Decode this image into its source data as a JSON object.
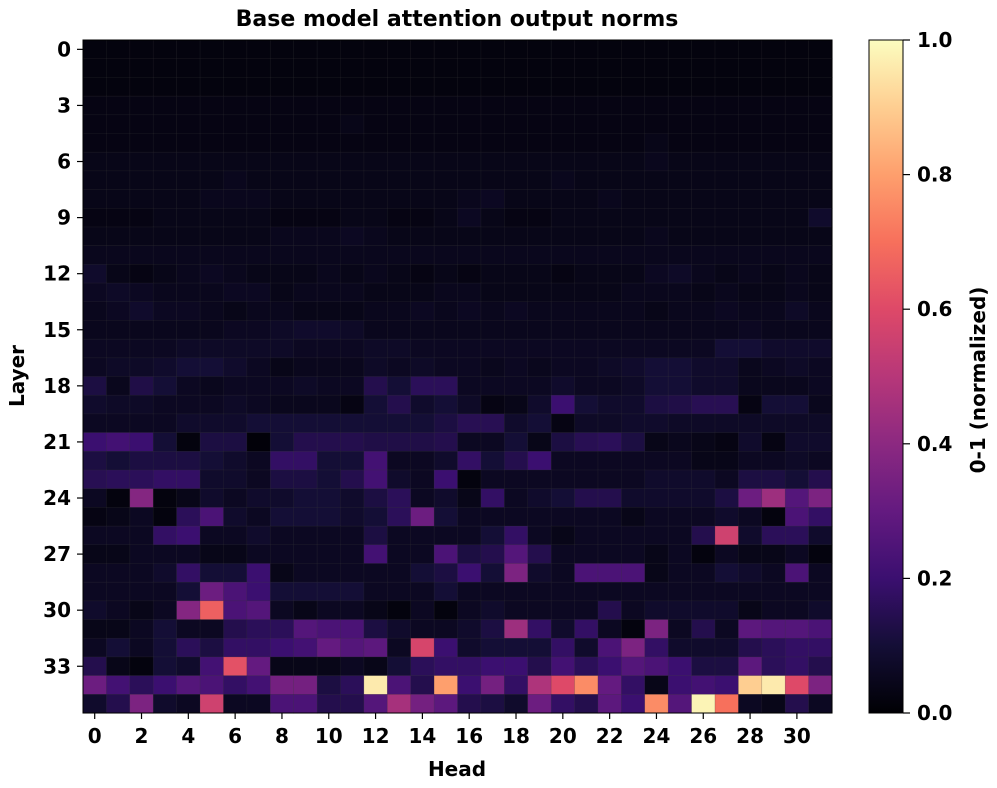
{
  "chart_data": {
    "type": "heatmap",
    "title": "Base model attention output norms",
    "xlabel": "Head",
    "ylabel": "Layer",
    "colorbar_label": "0-1 (normalized)",
    "colormap": "magma",
    "n_rows": 36,
    "n_cols": 32,
    "vmin": 0.0,
    "vmax": 1.0,
    "x_ticks": [
      0,
      2,
      4,
      6,
      8,
      10,
      12,
      14,
      16,
      18,
      20,
      22,
      24,
      26,
      28,
      30
    ],
    "y_ticks": [
      0,
      3,
      6,
      9,
      12,
      15,
      18,
      21,
      24,
      27,
      30,
      33
    ],
    "colorbar_ticks": [
      "0.0",
      "0.2",
      "0.4",
      "0.6",
      "0.8",
      "1.0"
    ],
    "values": [
      [
        0.02,
        0.02,
        0.02,
        0.02,
        0.02,
        0.02,
        0.02,
        0.02,
        0.02,
        0.02,
        0.02,
        0.02,
        0.02,
        0.02,
        0.02,
        0.02,
        0.02,
        0.02,
        0.02,
        0.02,
        0.02,
        0.02,
        0.02,
        0.02,
        0.02,
        0.02,
        0.02,
        0.02,
        0.02,
        0.02,
        0.02,
        0.02
      ],
      [
        0.02,
        0.02,
        0.02,
        0.02,
        0.02,
        0.02,
        0.02,
        0.02,
        0.02,
        0.02,
        0.02,
        0.02,
        0.02,
        0.02,
        0.02,
        0.02,
        0.02,
        0.02,
        0.02,
        0.02,
        0.02,
        0.02,
        0.02,
        0.02,
        0.02,
        0.02,
        0.02,
        0.02,
        0.02,
        0.02,
        0.02,
        0.02
      ],
      [
        0.02,
        0.02,
        0.02,
        0.02,
        0.02,
        0.02,
        0.02,
        0.02,
        0.02,
        0.02,
        0.02,
        0.02,
        0.02,
        0.02,
        0.02,
        0.02,
        0.02,
        0.02,
        0.02,
        0.02,
        0.02,
        0.02,
        0.02,
        0.02,
        0.02,
        0.02,
        0.02,
        0.02,
        0.02,
        0.02,
        0.02,
        0.02
      ],
      [
        0.03,
        0.03,
        0.03,
        0.03,
        0.03,
        0.03,
        0.03,
        0.03,
        0.03,
        0.03,
        0.03,
        0.03,
        0.03,
        0.03,
        0.03,
        0.03,
        0.03,
        0.03,
        0.03,
        0.03,
        0.03,
        0.03,
        0.03,
        0.03,
        0.03,
        0.03,
        0.03,
        0.03,
        0.03,
        0.03,
        0.03,
        0.03
      ],
      [
        0.03,
        0.03,
        0.03,
        0.03,
        0.03,
        0.03,
        0.03,
        0.03,
        0.03,
        0.03,
        0.03,
        0.04,
        0.03,
        0.03,
        0.03,
        0.03,
        0.03,
        0.03,
        0.03,
        0.03,
        0.03,
        0.03,
        0.03,
        0.03,
        0.03,
        0.03,
        0.03,
        0.03,
        0.03,
        0.03,
        0.03,
        0.03
      ],
      [
        0.03,
        0.03,
        0.03,
        0.03,
        0.03,
        0.03,
        0.03,
        0.03,
        0.03,
        0.03,
        0.03,
        0.03,
        0.03,
        0.03,
        0.03,
        0.03,
        0.03,
        0.03,
        0.03,
        0.03,
        0.03,
        0.03,
        0.03,
        0.03,
        0.04,
        0.03,
        0.03,
        0.03,
        0.03,
        0.03,
        0.03,
        0.03
      ],
      [
        0.04,
        0.04,
        0.04,
        0.04,
        0.04,
        0.04,
        0.04,
        0.04,
        0.04,
        0.04,
        0.04,
        0.04,
        0.04,
        0.04,
        0.04,
        0.04,
        0.04,
        0.04,
        0.04,
        0.04,
        0.04,
        0.04,
        0.04,
        0.04,
        0.05,
        0.04,
        0.04,
        0.04,
        0.04,
        0.04,
        0.04,
        0.04
      ],
      [
        0.04,
        0.04,
        0.04,
        0.04,
        0.04,
        0.04,
        0.05,
        0.04,
        0.04,
        0.04,
        0.04,
        0.04,
        0.04,
        0.04,
        0.04,
        0.04,
        0.04,
        0.04,
        0.04,
        0.04,
        0.05,
        0.04,
        0.04,
        0.04,
        0.04,
        0.04,
        0.04,
        0.04,
        0.04,
        0.04,
        0.04,
        0.04
      ],
      [
        0.04,
        0.04,
        0.04,
        0.04,
        0.04,
        0.05,
        0.05,
        0.05,
        0.04,
        0.04,
        0.04,
        0.04,
        0.04,
        0.04,
        0.04,
        0.04,
        0.05,
        0.06,
        0.04,
        0.04,
        0.04,
        0.04,
        0.05,
        0.04,
        0.04,
        0.04,
        0.04,
        0.04,
        0.04,
        0.04,
        0.04,
        0.04
      ],
      [
        0.03,
        0.03,
        0.03,
        0.04,
        0.04,
        0.04,
        0.04,
        0.04,
        0.03,
        0.03,
        0.03,
        0.04,
        0.04,
        0.03,
        0.03,
        0.04,
        0.06,
        0.04,
        0.03,
        0.03,
        0.04,
        0.04,
        0.04,
        0.04,
        0.04,
        0.04,
        0.04,
        0.04,
        0.04,
        0.04,
        0.04,
        0.08
      ],
      [
        0.04,
        0.04,
        0.04,
        0.04,
        0.04,
        0.04,
        0.04,
        0.04,
        0.05,
        0.05,
        0.05,
        0.06,
        0.05,
        0.04,
        0.04,
        0.04,
        0.04,
        0.04,
        0.04,
        0.04,
        0.04,
        0.04,
        0.04,
        0.04,
        0.05,
        0.04,
        0.04,
        0.04,
        0.04,
        0.04,
        0.04,
        0.04
      ],
      [
        0.05,
        0.05,
        0.05,
        0.05,
        0.05,
        0.05,
        0.05,
        0.05,
        0.05,
        0.05,
        0.05,
        0.05,
        0.05,
        0.05,
        0.05,
        0.05,
        0.05,
        0.05,
        0.05,
        0.05,
        0.05,
        0.05,
        0.05,
        0.05,
        0.05,
        0.05,
        0.05,
        0.05,
        0.05,
        0.05,
        0.05,
        0.05
      ],
      [
        0.08,
        0.04,
        0.03,
        0.04,
        0.05,
        0.06,
        0.05,
        0.04,
        0.04,
        0.04,
        0.05,
        0.04,
        0.05,
        0.04,
        0.03,
        0.04,
        0.03,
        0.04,
        0.04,
        0.04,
        0.03,
        0.04,
        0.04,
        0.04,
        0.06,
        0.07,
        0.05,
        0.04,
        0.05,
        0.04,
        0.05,
        0.04
      ],
      [
        0.06,
        0.07,
        0.06,
        0.05,
        0.05,
        0.05,
        0.06,
        0.06,
        0.04,
        0.05,
        0.05,
        0.05,
        0.04,
        0.04,
        0.04,
        0.05,
        0.05,
        0.04,
        0.04,
        0.04,
        0.04,
        0.04,
        0.04,
        0.05,
        0.05,
        0.05,
        0.04,
        0.05,
        0.04,
        0.04,
        0.05,
        0.04
      ],
      [
        0.05,
        0.06,
        0.08,
        0.06,
        0.06,
        0.05,
        0.04,
        0.05,
        0.05,
        0.04,
        0.04,
        0.04,
        0.05,
        0.05,
        0.06,
        0.05,
        0.06,
        0.05,
        0.06,
        0.05,
        0.05,
        0.05,
        0.05,
        0.05,
        0.04,
        0.05,
        0.05,
        0.06,
        0.05,
        0.05,
        0.07,
        0.05
      ],
      [
        0.05,
        0.05,
        0.05,
        0.05,
        0.05,
        0.05,
        0.06,
        0.06,
        0.07,
        0.08,
        0.08,
        0.07,
        0.05,
        0.05,
        0.05,
        0.05,
        0.05,
        0.05,
        0.05,
        0.05,
        0.05,
        0.05,
        0.05,
        0.05,
        0.05,
        0.05,
        0.05,
        0.05,
        0.06,
        0.05,
        0.05,
        0.05
      ],
      [
        0.06,
        0.06,
        0.06,
        0.06,
        0.07,
        0.07,
        0.07,
        0.07,
        0.07,
        0.06,
        0.06,
        0.06,
        0.07,
        0.07,
        0.06,
        0.06,
        0.06,
        0.06,
        0.06,
        0.06,
        0.06,
        0.06,
        0.06,
        0.06,
        0.06,
        0.06,
        0.06,
        0.1,
        0.1,
        0.08,
        0.08,
        0.08
      ],
      [
        0.06,
        0.07,
        0.07,
        0.08,
        0.1,
        0.1,
        0.08,
        0.06,
        0.04,
        0.05,
        0.05,
        0.05,
        0.07,
        0.06,
        0.07,
        0.06,
        0.06,
        0.05,
        0.06,
        0.05,
        0.06,
        0.06,
        0.07,
        0.08,
        0.1,
        0.1,
        0.08,
        0.08,
        0.05,
        0.06,
        0.07,
        0.06
      ],
      [
        0.12,
        0.05,
        0.13,
        0.1,
        0.06,
        0.05,
        0.06,
        0.06,
        0.06,
        0.07,
        0.06,
        0.06,
        0.14,
        0.1,
        0.16,
        0.16,
        0.06,
        0.06,
        0.06,
        0.06,
        0.08,
        0.06,
        0.06,
        0.07,
        0.1,
        0.1,
        0.08,
        0.08,
        0.05,
        0.05,
        0.05,
        0.06
      ],
      [
        0.08,
        0.07,
        0.07,
        0.06,
        0.06,
        0.06,
        0.07,
        0.06,
        0.05,
        0.05,
        0.05,
        0.03,
        0.1,
        0.14,
        0.08,
        0.1,
        0.07,
        0.03,
        0.04,
        0.08,
        0.2,
        0.1,
        0.08,
        0.08,
        0.12,
        0.13,
        0.15,
        0.15,
        0.03,
        0.1,
        0.1,
        0.05
      ],
      [
        0.06,
        0.06,
        0.06,
        0.06,
        0.08,
        0.08,
        0.08,
        0.1,
        0.1,
        0.1,
        0.1,
        0.1,
        0.1,
        0.1,
        0.1,
        0.12,
        0.15,
        0.15,
        0.08,
        0.1,
        0.03,
        0.07,
        0.07,
        0.08,
        0.08,
        0.07,
        0.07,
        0.07,
        0.07,
        0.07,
        0.07,
        0.07
      ],
      [
        0.2,
        0.22,
        0.2,
        0.1,
        0.02,
        0.12,
        0.12,
        0.01,
        0.1,
        0.14,
        0.14,
        0.14,
        0.13,
        0.13,
        0.13,
        0.14,
        0.06,
        0.06,
        0.1,
        0.04,
        0.12,
        0.15,
        0.16,
        0.12,
        0.04,
        0.05,
        0.04,
        0.03,
        0.08,
        0.03,
        0.08,
        0.08
      ],
      [
        0.12,
        0.1,
        0.12,
        0.12,
        0.12,
        0.1,
        0.08,
        0.06,
        0.18,
        0.18,
        0.1,
        0.1,
        0.22,
        0.06,
        0.06,
        0.08,
        0.18,
        0.1,
        0.14,
        0.2,
        0.06,
        0.06,
        0.06,
        0.06,
        0.06,
        0.06,
        0.04,
        0.04,
        0.06,
        0.06,
        0.07,
        0.06
      ],
      [
        0.15,
        0.16,
        0.16,
        0.18,
        0.18,
        0.08,
        0.08,
        0.06,
        0.12,
        0.12,
        0.1,
        0.14,
        0.22,
        0.08,
        0.06,
        0.2,
        0.02,
        0.06,
        0.06,
        0.06,
        0.06,
        0.06,
        0.06,
        0.06,
        0.08,
        0.08,
        0.08,
        0.06,
        0.12,
        0.12,
        0.1,
        0.14
      ],
      [
        0.06,
        0.02,
        0.38,
        0.02,
        0.04,
        0.08,
        0.06,
        0.08,
        0.08,
        0.1,
        0.1,
        0.08,
        0.12,
        0.16,
        0.06,
        0.08,
        0.04,
        0.18,
        0.06,
        0.08,
        0.1,
        0.14,
        0.14,
        0.08,
        0.08,
        0.08,
        0.08,
        0.12,
        0.32,
        0.44,
        0.26,
        0.36
      ],
      [
        0.03,
        0.04,
        0.06,
        0.02,
        0.16,
        0.24,
        0.08,
        0.06,
        0.1,
        0.1,
        0.1,
        0.08,
        0.1,
        0.16,
        0.32,
        0.1,
        0.06,
        0.06,
        0.06,
        0.06,
        0.06,
        0.06,
        0.06,
        0.04,
        0.06,
        0.06,
        0.06,
        0.08,
        0.06,
        0.02,
        0.24,
        0.18
      ],
      [
        0.06,
        0.06,
        0.06,
        0.18,
        0.2,
        0.06,
        0.06,
        0.08,
        0.06,
        0.06,
        0.06,
        0.06,
        0.12,
        0.06,
        0.06,
        0.06,
        0.06,
        0.1,
        0.18,
        0.06,
        0.04,
        0.06,
        0.06,
        0.06,
        0.06,
        0.06,
        0.14,
        0.56,
        0.08,
        0.16,
        0.16,
        0.08
      ],
      [
        0.04,
        0.04,
        0.06,
        0.06,
        0.06,
        0.04,
        0.04,
        0.06,
        0.06,
        0.06,
        0.06,
        0.06,
        0.22,
        0.06,
        0.06,
        0.24,
        0.12,
        0.14,
        0.26,
        0.14,
        0.06,
        0.06,
        0.06,
        0.06,
        0.04,
        0.06,
        0.02,
        0.06,
        0.04,
        0.04,
        0.06,
        0.02
      ],
      [
        0.06,
        0.06,
        0.06,
        0.08,
        0.18,
        0.1,
        0.1,
        0.2,
        0.04,
        0.06,
        0.06,
        0.06,
        0.06,
        0.06,
        0.1,
        0.12,
        0.2,
        0.1,
        0.36,
        0.08,
        0.06,
        0.24,
        0.24,
        0.24,
        0.04,
        0.06,
        0.06,
        0.1,
        0.08,
        0.06,
        0.24,
        0.06
      ],
      [
        0.06,
        0.06,
        0.06,
        0.06,
        0.1,
        0.32,
        0.24,
        0.2,
        0.1,
        0.1,
        0.1,
        0.1,
        0.06,
        0.06,
        0.06,
        0.1,
        0.06,
        0.06,
        0.06,
        0.06,
        0.06,
        0.06,
        0.06,
        0.06,
        0.06,
        0.06,
        0.06,
        0.06,
        0.06,
        0.06,
        0.06,
        0.06
      ],
      [
        0.08,
        0.06,
        0.04,
        0.06,
        0.38,
        0.66,
        0.24,
        0.26,
        0.06,
        0.04,
        0.06,
        0.06,
        0.04,
        0.02,
        0.06,
        0.02,
        0.06,
        0.08,
        0.06,
        0.06,
        0.06,
        0.06,
        0.14,
        0.06,
        0.08,
        0.08,
        0.08,
        0.08,
        0.04,
        0.06,
        0.06,
        0.08
      ],
      [
        0.04,
        0.04,
        0.06,
        0.1,
        0.06,
        0.06,
        0.14,
        0.16,
        0.16,
        0.26,
        0.24,
        0.24,
        0.12,
        0.08,
        0.06,
        0.06,
        0.08,
        0.12,
        0.44,
        0.18,
        0.08,
        0.18,
        0.06,
        0.02,
        0.36,
        0.06,
        0.14,
        0.06,
        0.28,
        0.26,
        0.26,
        0.24
      ],
      [
        0.06,
        0.1,
        0.06,
        0.1,
        0.16,
        0.12,
        0.18,
        0.18,
        0.2,
        0.22,
        0.3,
        0.26,
        0.28,
        0.06,
        0.58,
        0.2,
        0.08,
        0.1,
        0.1,
        0.1,
        0.18,
        0.08,
        0.24,
        0.36,
        0.18,
        0.08,
        0.08,
        0.08,
        0.14,
        0.16,
        0.18,
        0.18
      ],
      [
        0.14,
        0.04,
        0.02,
        0.1,
        0.08,
        0.22,
        0.62,
        0.3,
        0.04,
        0.04,
        0.04,
        0.06,
        0.04,
        0.1,
        0.16,
        0.18,
        0.18,
        0.2,
        0.2,
        0.14,
        0.22,
        0.16,
        0.2,
        0.26,
        0.24,
        0.2,
        0.12,
        0.12,
        0.28,
        0.16,
        0.18,
        0.14
      ],
      [
        0.32,
        0.22,
        0.16,
        0.2,
        0.26,
        0.24,
        0.18,
        0.22,
        0.34,
        0.34,
        0.12,
        0.16,
        0.96,
        0.24,
        0.14,
        0.8,
        0.2,
        0.34,
        0.18,
        0.48,
        0.6,
        0.76,
        0.3,
        0.18,
        0.04,
        0.2,
        0.22,
        0.2,
        0.9,
        0.96,
        0.6,
        0.36
      ],
      [
        0.08,
        0.14,
        0.36,
        0.08,
        0.06,
        0.56,
        0.06,
        0.06,
        0.24,
        0.24,
        0.14,
        0.14,
        0.26,
        0.46,
        0.34,
        0.28,
        0.14,
        0.12,
        0.08,
        0.32,
        0.18,
        0.14,
        0.28,
        0.2,
        0.76,
        0.26,
        0.98,
        0.7,
        0.06,
        0.04,
        0.14,
        0.06
      ]
    ]
  }
}
